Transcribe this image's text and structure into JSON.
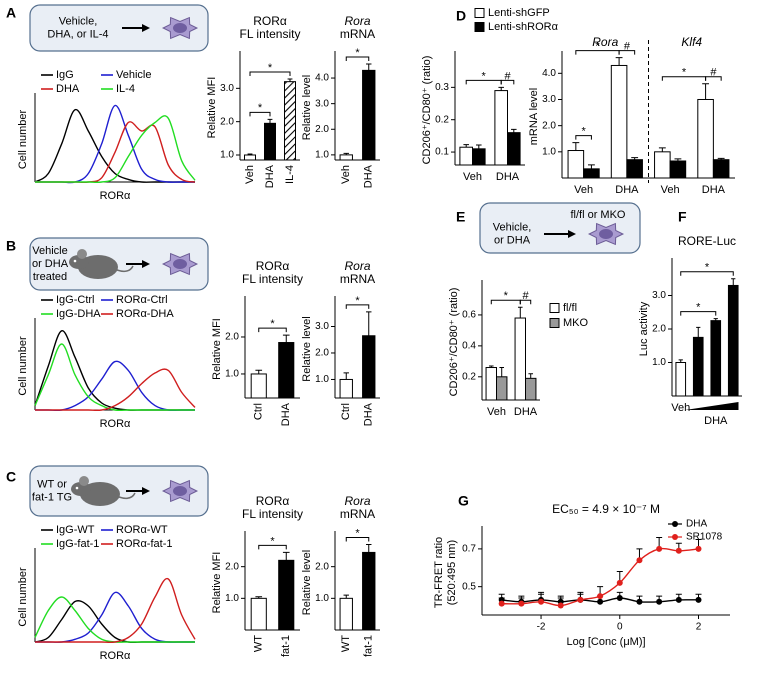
{
  "panel_labels": [
    "A",
    "B",
    "C",
    "D",
    "E",
    "F",
    "G"
  ],
  "schematics": [
    {
      "lines": [
        "Vehicle,",
        "DHA, or IL-4"
      ]
    },
    {
      "lines": [
        "Vehicle",
        "or DHA",
        "treated"
      ]
    },
    {
      "lines": [
        "WT or",
        "fat-1 TG"
      ]
    },
    {
      "lines": [
        "Vehicle,",
        "or DHA"
      ],
      "note": "fl/fl or MKO"
    }
  ],
  "chart_data": [
    {
      "type": "line",
      "ylabel": "Cell number",
      "xlabel": "RORα",
      "x": [
        0,
        1,
        2,
        3,
        4,
        5,
        6,
        7,
        8,
        9,
        10,
        11,
        12
      ],
      "xlim": [
        0,
        12
      ],
      "ylim": [
        0,
        1
      ],
      "legend": "upper left",
      "series": [
        {
          "name": "IgG",
          "color": "#000000",
          "values": [
            0,
            0.1,
            0.45,
            0.85,
            0.6,
            0.3,
            0.1,
            0.03,
            0,
            0,
            0,
            0,
            0
          ]
        },
        {
          "name": "Vehicle",
          "color": "#1f1fd0",
          "values": [
            0,
            0,
            0,
            0,
            0.1,
            0.45,
            0.9,
            0.55,
            0.15,
            0.03,
            0,
            0,
            0
          ]
        },
        {
          "name": "DHA",
          "color": "#d01f1f",
          "values": [
            0,
            0,
            0,
            0,
            0,
            0.05,
            0.35,
            0.7,
            0.6,
            0.65,
            0.2,
            0.03,
            0
          ]
        },
        {
          "name": "IL-4",
          "color": "#22dd22",
          "values": [
            0,
            0,
            0,
            0,
            0,
            0,
            0.05,
            0.3,
            0.55,
            0.7,
            0.75,
            0.25,
            0.02
          ]
        }
      ]
    },
    {
      "type": "bar",
      "title": [
        "RORα",
        "FL intensity"
      ],
      "ylabel": "Relative MFI",
      "categories": [
        "Veh",
        "DHA",
        "IL-4"
      ],
      "values": [
        1.0,
        1.95,
        3.2
      ],
      "errors": [
        0.03,
        0.12,
        0.08
      ],
      "colors": [
        "#ffffff",
        "#000000",
        "#ffffff"
      ],
      "hatched": [
        false,
        false,
        true
      ],
      "ylim": [
        0.85,
        4.0
      ],
      "yticks": [
        {
          "value": 1,
          "label": "1.0"
        },
        {
          "value": 2,
          "label": "2.0"
        },
        {
          "value": 3,
          "label": "3.0"
        }
      ],
      "rotate_labels": true,
      "annotations": [
        {
          "text": "*",
          "between": [
            0,
            1
          ]
        },
        {
          "text": "*",
          "between": [
            0,
            2
          ]
        }
      ]
    },
    {
      "type": "bar",
      "title": [
        "Rora",
        "mRNA"
      ],
      "italic_title_lines": [
        0
      ],
      "ylabel": "Relative level",
      "categories": [
        "Veh",
        "DHA"
      ],
      "values": [
        1.0,
        4.3
      ],
      "errors": [
        0.06,
        0.25
      ],
      "colors": [
        "#ffffff",
        "#000000"
      ],
      "ylim": [
        0.8,
        4.9
      ],
      "yticks": [
        {
          "value": 1,
          "label": "1.0"
        },
        {
          "value": 2,
          "label": "2.0"
        },
        {
          "value": 3,
          "label": "3.0"
        },
        {
          "value": 4,
          "label": "4.0"
        }
      ],
      "rotate_labels": true,
      "annotations": [
        {
          "text": "*",
          "between": [
            0,
            1
          ]
        }
      ]
    },
    {
      "type": "line",
      "ylabel": "Cell number",
      "xlabel": "RORα",
      "x": [
        0,
        1,
        2,
        3,
        4,
        5,
        6,
        7,
        8,
        9,
        10,
        11,
        12
      ],
      "xlim": [
        0,
        12
      ],
      "ylim": [
        0,
        1
      ],
      "legend": "upper left",
      "series": [
        {
          "name": "IgG-Ctrl",
          "color": "#000000",
          "values": [
            0.05,
            0.5,
            0.9,
            0.6,
            0.25,
            0.08,
            0.02,
            0,
            0,
            0,
            0,
            0,
            0
          ]
        },
        {
          "name": "RORα-Ctrl",
          "color": "#1f1fd0",
          "values": [
            0,
            0,
            0,
            0.05,
            0.15,
            0.35,
            0.55,
            0.45,
            0.2,
            0.05,
            0,
            0,
            0
          ]
        },
        {
          "name": "IgG-DHA",
          "color": "#22dd22",
          "values": [
            0.05,
            0.4,
            0.75,
            0.4,
            0.15,
            0.05,
            0,
            0,
            0,
            0,
            0,
            0,
            0
          ]
        },
        {
          "name": "RORα-DHA",
          "color": "#d01f1f",
          "values": [
            0,
            0,
            0,
            0,
            0,
            0,
            0.05,
            0.15,
            0.3,
            0.42,
            0.45,
            0.2,
            0.03
          ]
        }
      ]
    },
    {
      "type": "bar",
      "title": [
        "RORα",
        "FL intensity"
      ],
      "ylabel": "Relative MFI",
      "categories": [
        "Ctrl",
        "DHA"
      ],
      "values": [
        1.0,
        1.85
      ],
      "errors": [
        0.1,
        0.2
      ],
      "colors": [
        "#ffffff",
        "#000000"
      ],
      "ylim": [
        0.35,
        3.0
      ],
      "yticks": [
        {
          "value": 1,
          "label": "1.0"
        },
        {
          "value": 2,
          "label": "2.0"
        }
      ],
      "rotate_labels": true,
      "annotations": [
        {
          "text": "*",
          "between": [
            0,
            1
          ]
        }
      ]
    },
    {
      "type": "bar",
      "title": [
        "Rora",
        "mRNA"
      ],
      "italic_title_lines": [
        0
      ],
      "ylabel": "Relative level",
      "categories": [
        "Ctrl",
        "DHA"
      ],
      "values": [
        1.0,
        2.65
      ],
      "errors": [
        0.25,
        0.9
      ],
      "colors": [
        "#ffffff",
        "#000000"
      ],
      "ylim": [
        0.3,
        4.0
      ],
      "yticks": [
        {
          "value": 1,
          "label": "1.0"
        },
        {
          "value": 2,
          "label": "2.0"
        },
        {
          "value": 3,
          "label": "3.0"
        }
      ],
      "rotate_labels": true,
      "annotations": [
        {
          "text": "*",
          "between": [
            0,
            1
          ]
        }
      ]
    },
    {
      "type": "line",
      "ylabel": "Cell number",
      "xlabel": "RORα",
      "x": [
        0,
        1,
        2,
        3,
        4,
        5,
        6,
        7,
        8,
        9,
        10,
        11,
        12
      ],
      "xlim": [
        0,
        12
      ],
      "ylim": [
        0,
        1
      ],
      "legend": "upper left",
      "series": [
        {
          "name": "IgG-WT",
          "color": "#000000",
          "values": [
            0,
            0.05,
            0.25,
            0.45,
            0.4,
            0.2,
            0.05,
            0,
            0,
            0,
            0,
            0,
            0
          ]
        },
        {
          "name": "RORα-WT",
          "color": "#1f1fd0",
          "values": [
            0,
            0,
            0,
            0.03,
            0.1,
            0.3,
            0.55,
            0.4,
            0.15,
            0.03,
            0,
            0,
            0
          ]
        },
        {
          "name": "IgG-fat-1",
          "color": "#22dd22",
          "values": [
            0.05,
            0.35,
            0.5,
            0.35,
            0.15,
            0.03,
            0,
            0,
            0,
            0,
            0,
            0,
            0
          ]
        },
        {
          "name": "RORα-fat-1",
          "color": "#d01f1f",
          "values": [
            0,
            0,
            0,
            0,
            0,
            0,
            0,
            0.05,
            0.2,
            0.5,
            0.7,
            0.3,
            0.03
          ]
        }
      ]
    },
    {
      "type": "bar",
      "title": [
        "RORα",
        "FL intensity"
      ],
      "ylabel": "Relative MFI",
      "categories": [
        "WT",
        "fat-1"
      ],
      "values": [
        1.0,
        2.2
      ],
      "errors": [
        0.05,
        0.25
      ],
      "colors": [
        "#ffffff",
        "#000000"
      ],
      "ylim": [
        0,
        3.0
      ],
      "yticks": [
        {
          "value": 1,
          "label": "1.0"
        },
        {
          "value": 2,
          "label": "2.0"
        }
      ],
      "rotate_labels": true,
      "annotations": [
        {
          "text": "*",
          "between": [
            0,
            1
          ]
        }
      ]
    },
    {
      "type": "bar",
      "title": [
        "Rora",
        "mRNA"
      ],
      "italic_title_lines": [
        0
      ],
      "ylabel": "Relative level",
      "categories": [
        "WT",
        "fat-1"
      ],
      "values": [
        1.0,
        2.45
      ],
      "errors": [
        0.1,
        0.25
      ],
      "colors": [
        "#ffffff",
        "#000000"
      ],
      "ylim": [
        0,
        3.0
      ],
      "yticks": [
        {
          "value": 1,
          "label": "1.0"
        },
        {
          "value": 2,
          "label": "2.0"
        }
      ],
      "rotate_labels": true,
      "annotations": [
        {
          "text": "*",
          "between": [
            0,
            1
          ]
        }
      ]
    },
    {
      "type": "bar",
      "ylabel": "CD206⁺/CD80⁺ (ratio)",
      "categories": [
        "Veh",
        "DHA"
      ],
      "legend": "above",
      "series": [
        {
          "name": "Lenti-shGFP",
          "color": "#ffffff",
          "values": [
            0.115,
            0.29
          ],
          "errors": [
            0.008,
            0.01
          ]
        },
        {
          "name": "Lenti-shRORα",
          "color": "#000000",
          "values": [
            0.11,
            0.16
          ],
          "errors": [
            0.012,
            0.01
          ]
        }
      ],
      "ylim": [
        0.06,
        0.4
      ],
      "yticks": [
        0.1,
        0.2,
        0.3
      ],
      "annotations": [
        {
          "text": "*",
          "between": [
            0,
            2
          ]
        },
        {
          "text": "#",
          "between": [
            2,
            3
          ]
        }
      ]
    },
    {
      "type": "bar",
      "ylabel": "mRNA level",
      "groups": [
        "Rora",
        "Klf4"
      ],
      "categories": [
        "Veh",
        "DHA",
        "Veh",
        "DHA"
      ],
      "series": [
        {
          "color": "#ffffff",
          "values": [
            1.05,
            4.3,
            1.0,
            3.0
          ],
          "errors": [
            0.3,
            0.3,
            0.15,
            0.6
          ]
        },
        {
          "color": "#000000",
          "values": [
            0.35,
            0.7,
            0.65,
            0.7
          ],
          "errors": [
            0.15,
            0.08,
            0.08,
            0.05
          ]
        }
      ],
      "ylim": [
        0,
        4.7
      ],
      "yticks": [
        {
          "value": 1,
          "label": "1.0"
        },
        {
          "value": 2,
          "label": "2.0"
        },
        {
          "value": 3,
          "label": "3.0"
        },
        {
          "value": 4,
          "label": "4.0"
        }
      ],
      "annotations": [
        {
          "text": "*",
          "between": [
            0,
            1
          ]
        },
        {
          "text": "*",
          "between": [
            0,
            2
          ]
        },
        {
          "text": "#",
          "between": [
            2,
            3
          ]
        },
        {
          "text": "*",
          "between": [
            4,
            6
          ]
        },
        {
          "text": "#",
          "between": [
            6,
            7
          ]
        }
      ]
    },
    {
      "type": "bar",
      "ylabel": "CD206⁺/CD80⁺ (ratio)",
      "categories": [
        "Veh",
        "DHA"
      ],
      "legend": "right",
      "series": [
        {
          "name": "fl/fl",
          "color": "#ffffff",
          "values": [
            0.26,
            0.58
          ],
          "errors": [
            0.01,
            0.07
          ]
        },
        {
          "name": "MKO",
          "color": "#999999",
          "values": [
            0.2,
            0.19
          ],
          "errors": [
            0.06,
            0.03
          ]
        }
      ],
      "ylim": [
        0.05,
        0.8
      ],
      "yticks": [
        0.2,
        0.4,
        0.6
      ],
      "annotations": [
        {
          "text": "*",
          "between": [
            0,
            2
          ]
        },
        {
          "text": "#",
          "between": [
            2,
            3
          ]
        }
      ]
    },
    {
      "type": "bar",
      "title": [
        "RORE-Luc"
      ],
      "ylabel": "Luc activity",
      "categories": [
        "Veh",
        null,
        null,
        null
      ],
      "xlabel": "DHA",
      "dose_wedge": true,
      "values": [
        1.0,
        1.75,
        2.25,
        3.3
      ],
      "errors": [
        0.08,
        0.3,
        0.06,
        0.2
      ],
      "colors": [
        "#ffffff",
        "#000000",
        "#000000",
        "#000000"
      ],
      "ylim": [
        0,
        4.0
      ],
      "yticks": [
        {
          "value": 1,
          "label": "1.0"
        },
        {
          "value": 2,
          "label": "2.0"
        },
        {
          "value": 3,
          "label": "3.0"
        }
      ],
      "annotations": [
        {
          "text": "*",
          "between": [
            0,
            2
          ]
        },
        {
          "text": "*",
          "between": [
            0,
            3
          ]
        }
      ]
    },
    {
      "type": "line",
      "title": "EC₅₀ = 4.9 × 10⁻⁷ M",
      "title_color": "#e0201c",
      "ylabel": [
        "TR-FRET ratio",
        "(520:495 nm)"
      ],
      "xlabel": "Log [Conc (μM)]",
      "x": [
        -3,
        -2.5,
        -2,
        -1.5,
        -1,
        -0.5,
        0,
        0.5,
        1,
        1.5,
        2
      ],
      "xlim": [
        -3.5,
        2.8
      ],
      "ylim": [
        0.35,
        0.8
      ],
      "xticks": [
        -2,
        0,
        2
      ],
      "yticks": [
        0.5,
        0.7
      ],
      "markers": true,
      "legend": "upper right",
      "series": [
        {
          "name": "DHA",
          "color": "#000000",
          "values": [
            0.43,
            0.42,
            0.43,
            0.42,
            0.43,
            0.42,
            0.44,
            0.42,
            0.42,
            0.43,
            0.43
          ],
          "errors": [
            0.03,
            0.03,
            0.03,
            0.03,
            0.03,
            0.03,
            0.03,
            0.03,
            0.03,
            0.03,
            0.03
          ]
        },
        {
          "name": "SR1078",
          "color": "#e0201c",
          "values": [
            0.41,
            0.41,
            0.42,
            0.4,
            0.43,
            0.45,
            0.52,
            0.64,
            0.7,
            0.69,
            0.7
          ],
          "errors": [
            0.03,
            0.03,
            0.05,
            0.04,
            0.04,
            0.05,
            0.06,
            0.06,
            0.06,
            0.04,
            0.05
          ]
        }
      ]
    }
  ]
}
